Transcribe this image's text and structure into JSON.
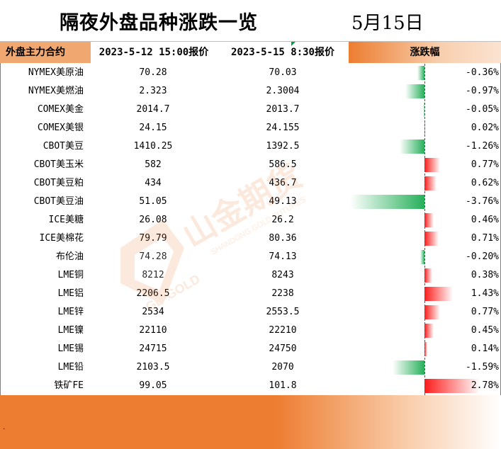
{
  "title": "隔夜外盘品种涨跌一览",
  "date": "5月15日",
  "headers": {
    "contract": "外盘主力合约",
    "price1": "2023-5-12 15:00报价",
    "price2": "2023-5-15 8:30报价",
    "change": "涨跌幅"
  },
  "rows": [
    {
      "name": "NYMEX美原油",
      "p1": "70.28",
      "p2": "70.03",
      "chg": "-0.36%",
      "pct": -0.36
    },
    {
      "name": "NYMEX美燃油",
      "p1": "2.323",
      "p2": "2.3004",
      "chg": "-0.97%",
      "pct": -0.97
    },
    {
      "name": "COMEX美金",
      "p1": "2014.7",
      "p2": "2013.7",
      "chg": "-0.05%",
      "pct": -0.05
    },
    {
      "name": "COMEX美银",
      "p1": "24.15",
      "p2": "24.155",
      "chg": "0.02%",
      "pct": 0.02
    },
    {
      "name": "CBOT美豆",
      "p1": "1410.25",
      "p2": "1392.5",
      "chg": "-1.26%",
      "pct": -1.26
    },
    {
      "name": "CBOT美玉米",
      "p1": "582",
      "p2": "586.5",
      "chg": "0.77%",
      "pct": 0.77
    },
    {
      "name": "CBOT美豆粕",
      "p1": "434",
      "p2": "436.7",
      "chg": "0.62%",
      "pct": 0.62
    },
    {
      "name": "CBOT美豆油",
      "p1": "51.05",
      "p2": "49.13",
      "chg": "-3.76%",
      "pct": -3.76
    },
    {
      "name": "ICE美糖",
      "p1": "26.08",
      "p2": "26.2",
      "chg": "0.46%",
      "pct": 0.46
    },
    {
      "name": "ICE美棉花",
      "p1": "79.79",
      "p2": "80.36",
      "chg": "0.71%",
      "pct": 0.71
    },
    {
      "name": "布伦油",
      "p1": "74.28",
      "p2": "74.13",
      "chg": "-0.20%",
      "pct": -0.2
    },
    {
      "name": "LME铜",
      "p1": "8212",
      "p2": "8243",
      "chg": "0.38%",
      "pct": 0.38
    },
    {
      "name": "LME铝",
      "p1": "2206.5",
      "p2": "2238",
      "chg": "1.43%",
      "pct": 1.43
    },
    {
      "name": "LME锌",
      "p1": "2534",
      "p2": "2553.5",
      "chg": "0.77%",
      "pct": 0.77
    },
    {
      "name": "LME镍",
      "p1": "22110",
      "p2": "22210",
      "chg": "0.45%",
      "pct": 0.45
    },
    {
      "name": "LME锡",
      "p1": "24715",
      "p2": "24750",
      "chg": "0.14%",
      "pct": 0.14
    },
    {
      "name": "LME铅",
      "p1": "2103.5",
      "p2": "2070",
      "chg": "-1.59%",
      "pct": -1.59
    },
    {
      "name": "铁矿FE",
      "p1": "99.05",
      "p2": "101.8",
      "chg": "2.78%",
      "pct": 2.78
    }
  ],
  "footer_mark": ".",
  "watermark": {
    "brand": "山金期货",
    "latin": "SHANDONG GOLD FUTURES",
    "logo_text": "GD-GOLD"
  },
  "colors": {
    "accent": "#ed7d31",
    "up": "#ff1b1b",
    "down": "#26b05a"
  }
}
